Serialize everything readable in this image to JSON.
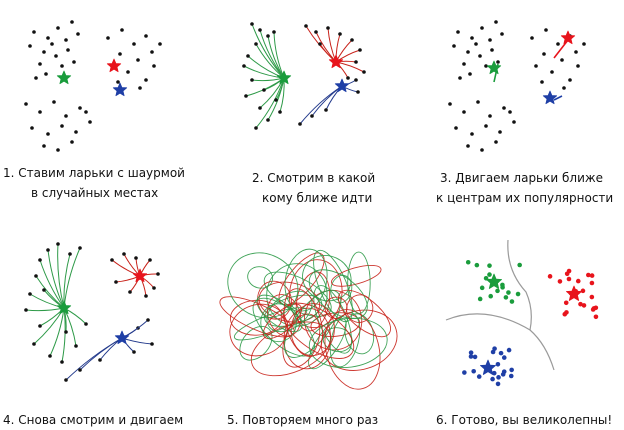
{
  "colors": {
    "point": "#111111",
    "green": "#1a9c3c",
    "red": "#e8141c",
    "blue": "#1f3fa6",
    "line_green": "#2e9a48",
    "line_red": "#c8221a",
    "line_blue": "#233a8c",
    "border": "#9a9a9a"
  },
  "icons": {
    "centroid": "star",
    "point": "dot",
    "movement": "arrow"
  },
  "captions": {
    "step1": {
      "line1": "1. Ставим ларьки с шаурмой",
      "line2": "в случайных местах"
    },
    "step2": {
      "line1": "2. Смотрим в какой",
      "line2": "кому ближе идти"
    },
    "step3": {
      "line1": "3. Двигаем ларьки ближе",
      "line2": "к центрам их популярности"
    },
    "step4": {
      "line1": "4. Снова смотрим и двигаем"
    },
    "step5": {
      "line1": "5. Повторяем много раз"
    },
    "step6": {
      "line1": "6. Готово, вы великолепны!"
    }
  }
}
